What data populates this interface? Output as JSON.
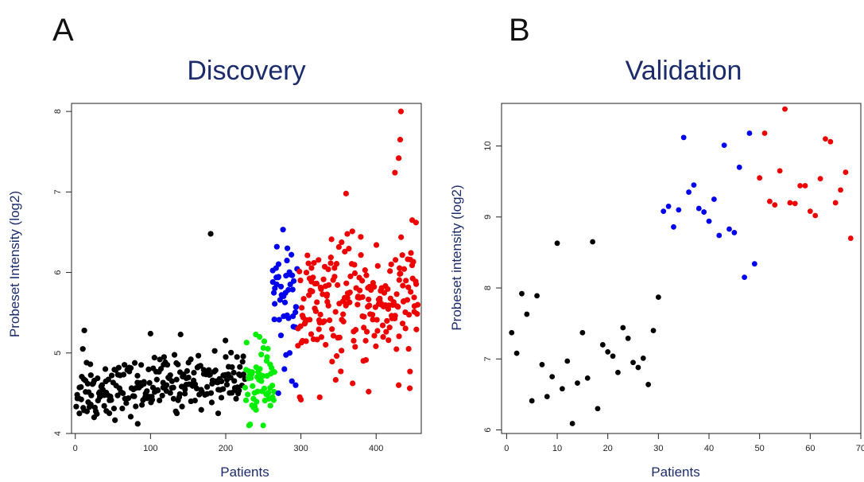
{
  "panels": [
    {
      "letter": "A"
    },
    {
      "letter": "B"
    }
  ],
  "colors": {
    "black": "#000000",
    "green": "#00ee00",
    "blue": "#0000ee",
    "red": "#ee0000"
  },
  "chart_data": [
    {
      "type": "scatter",
      "title": "Discovery",
      "xlabel": "Patients",
      "ylabel": "Probeset Intensity (log2)",
      "xlim": [
        -5,
        460
      ],
      "ylim": [
        4,
        8.1
      ],
      "xticks": [
        0,
        100,
        200,
        300,
        400
      ],
      "yticks": [
        4,
        5,
        6,
        7,
        8
      ],
      "series": [
        {
          "color": "#000000",
          "n": 225,
          "x_range": [
            1,
            225
          ],
          "trend": [
            4.5,
            4.72
          ],
          "spread": 0.16,
          "outliers": [
            [
              10,
              5.05
            ],
            [
              12,
              5.28
            ],
            [
              15,
              4.88
            ],
            [
              20,
              4.86
            ],
            [
              25,
              4.2
            ],
            [
              40,
              4.8
            ],
            [
              83,
              4.12
            ],
            [
              100,
              5.24
            ],
            [
              118,
              4.95
            ],
            [
              135,
              4.25
            ],
            [
              140,
              5.23
            ],
            [
              180,
              6.48
            ],
            [
              190,
              4.25
            ],
            [
              200,
              4.95
            ],
            [
              215,
              4.95
            ]
          ]
        },
        {
          "color": "#00ee00",
          "n": 55,
          "x_range": [
            226,
            265
          ],
          "trend": [
            4.6,
            4.6
          ],
          "spread": 0.2,
          "outliers": [
            [
              240,
              5.23
            ],
            [
              245,
              5.2
            ],
            [
              235,
              4.35
            ],
            [
              255,
              4.95
            ]
          ]
        },
        {
          "color": "#0000ee",
          "n": 42,
          "x_range": [
            262,
            295
          ],
          "trend": [
            5.7,
            5.7
          ],
          "spread": 0.3,
          "outliers": [
            [
              268,
              6.32
            ],
            [
              282,
              6.3
            ],
            [
              270,
              4.5
            ],
            [
              288,
              4.65
            ],
            [
              278,
              4.8
            ],
            [
              293,
              4.6
            ],
            [
              285,
              5.0
            ]
          ]
        },
        {
          "color": "#ee0000",
          "n": 215,
          "x_range": [
            296,
            455
          ],
          "trend": [
            5.55,
            5.65
          ],
          "spread": 0.38,
          "outliers": [
            [
              300,
              4.42
            ],
            [
              325,
              4.45
            ],
            [
              360,
              6.98
            ],
            [
              390,
              4.52
            ],
            [
              430,
              4.6
            ],
            [
              433,
              8.0
            ],
            [
              432,
              7.65
            ],
            [
              430,
              7.42
            ],
            [
              425,
              7.24
            ],
            [
              448,
              6.65
            ],
            [
              453,
              6.62
            ],
            [
              445,
              4.77
            ]
          ]
        }
      ]
    },
    {
      "type": "scatter",
      "title": "Validation",
      "xlabel": "Patients",
      "ylabel": "Probeset intensity (log2)",
      "xlim": [
        -1,
        70
      ],
      "ylim": [
        5.95,
        10.6
      ],
      "xticks": [
        0,
        10,
        20,
        30,
        40,
        50,
        60,
        70
      ],
      "yticks": [
        6,
        7,
        8,
        9,
        10
      ],
      "series": [
        {
          "color": "#000000",
          "points": [
            [
              1,
              7.37
            ],
            [
              2,
              7.08
            ],
            [
              3,
              7.92
            ],
            [
              4,
              7.63
            ],
            [
              5,
              6.41
            ],
            [
              6,
              7.89
            ],
            [
              7,
              6.92
            ],
            [
              8,
              6.47
            ],
            [
              9,
              6.75
            ],
            [
              10,
              8.63
            ],
            [
              11,
              6.58
            ],
            [
              12,
              6.97
            ],
            [
              13,
              6.09
            ],
            [
              14,
              6.66
            ],
            [
              15,
              7.37
            ],
            [
              16,
              6.73
            ],
            [
              17,
              8.65
            ],
            [
              18,
              6.3
            ],
            [
              19,
              7.2
            ],
            [
              20,
              7.1
            ],
            [
              21,
              7.04
            ],
            [
              22,
              6.81
            ],
            [
              23,
              7.44
            ],
            [
              24,
              7.29
            ],
            [
              25,
              6.95
            ],
            [
              26,
              6.88
            ],
            [
              27,
              7.01
            ],
            [
              28,
              6.64
            ],
            [
              29,
              7.4
            ],
            [
              30,
              7.87
            ]
          ]
        },
        {
          "color": "#0000ee",
          "points": [
            [
              31,
              9.08
            ],
            [
              32,
              9.15
            ],
            [
              33,
              8.86
            ],
            [
              34,
              9.1
            ],
            [
              35,
              10.12
            ],
            [
              36,
              9.35
            ],
            [
              37,
              9.45
            ],
            [
              38,
              9.12
            ],
            [
              39,
              9.07
            ],
            [
              40,
              8.94
            ],
            [
              41,
              9.25
            ],
            [
              42,
              8.74
            ],
            [
              43,
              10.01
            ],
            [
              44,
              8.83
            ],
            [
              45,
              8.78
            ],
            [
              46,
              9.7
            ],
            [
              47,
              8.15
            ],
            [
              48,
              10.18
            ],
            [
              49,
              8.34
            ]
          ]
        },
        {
          "color": "#ee0000",
          "points": [
            [
              50,
              9.55
            ],
            [
              51,
              10.18
            ],
            [
              52,
              9.22
            ],
            [
              53,
              9.17
            ],
            [
              54,
              9.65
            ],
            [
              55,
              10.52
            ],
            [
              56,
              9.2
            ],
            [
              57,
              9.19
            ],
            [
              58,
              9.44
            ],
            [
              59,
              9.44
            ],
            [
              60,
              9.08
            ],
            [
              61,
              9.02
            ],
            [
              62,
              9.54
            ],
            [
              63,
              10.1
            ],
            [
              64,
              10.06
            ],
            [
              65,
              9.2
            ],
            [
              66,
              9.38
            ],
            [
              67,
              9.63
            ],
            [
              68,
              8.7
            ]
          ]
        }
      ]
    }
  ]
}
